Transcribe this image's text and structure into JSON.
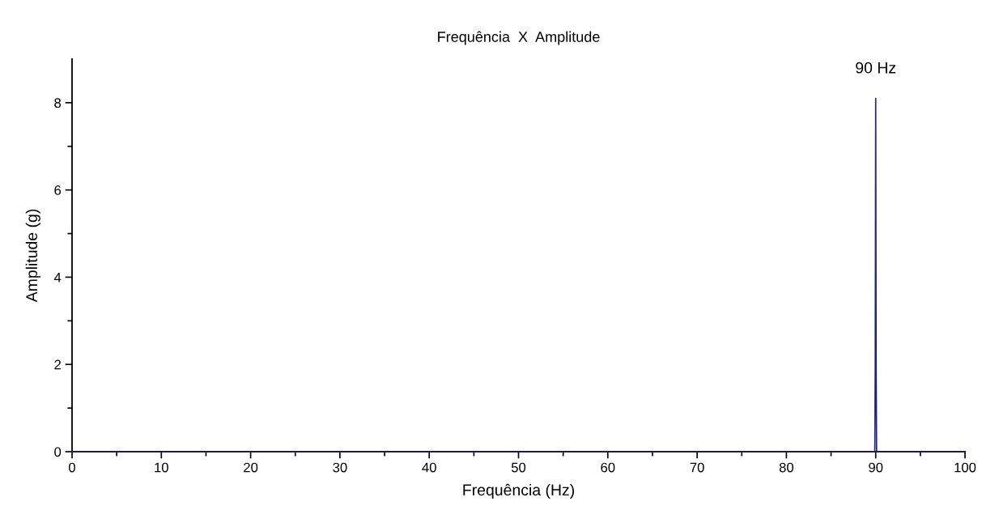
{
  "chart_data": {
    "type": "line",
    "title": "Frequência  X  Amplitude",
    "xlabel": "Frequência (Hz)",
    "ylabel": "Amplitude (g)",
    "series": [
      {
        "color": "#23237a",
        "x": [
          0,
          89.9,
          89.95,
          90,
          90.05,
          90.1,
          100
        ],
        "values": [
          0,
          0,
          1.93,
          8.1,
          1.93,
          0,
          0
        ]
      }
    ],
    "xlim": [
      0,
      100
    ],
    "xticks": [
      0,
      10,
      20,
      30,
      40,
      50,
      60,
      70,
      80,
      90,
      100
    ],
    "ylim": [
      0,
      9
    ],
    "yticks": [
      0,
      2,
      4,
      6,
      8
    ],
    "annotations": [
      {
        "text": "90 Hz",
        "x": 90,
        "y": 8.1
      }
    ],
    "grid": false,
    "legend": false,
    "marker": "none",
    "line_style": "solid"
  }
}
